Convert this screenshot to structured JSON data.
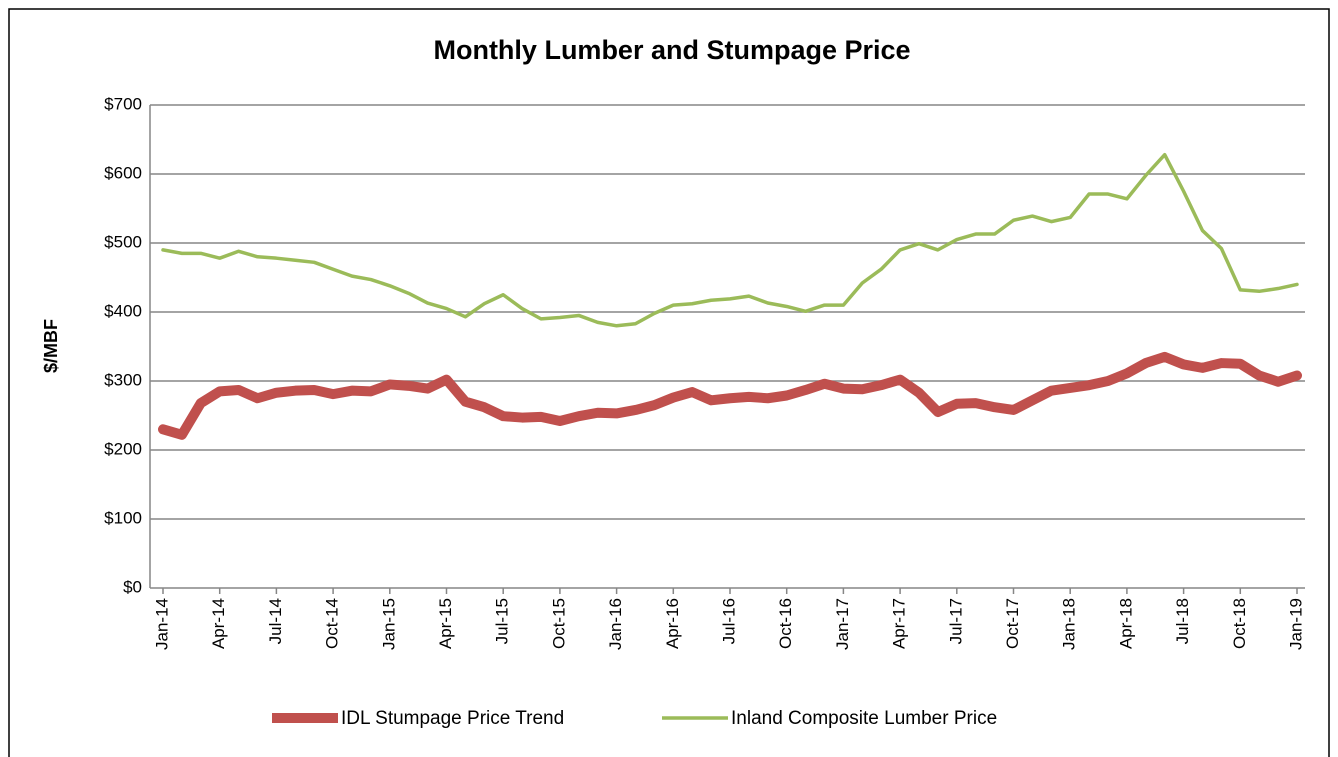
{
  "chart_data": {
    "type": "line",
    "title": "Monthly Lumber and Stumpage Price",
    "y_label": "$/MBF",
    "categories": [
      "Jan-14",
      null,
      null,
      "Apr-14",
      null,
      null,
      "Jul-14",
      null,
      null,
      "Oct-14",
      null,
      null,
      "Jan-15",
      null,
      null,
      "Apr-15",
      null,
      null,
      "Jul-15",
      null,
      null,
      "Oct-15",
      null,
      null,
      "Jan-16",
      null,
      null,
      "Apr-16",
      null,
      null,
      "Jul-16",
      null,
      null,
      "Oct-16",
      null,
      null,
      "Jan-17",
      null,
      null,
      "Apr-17",
      null,
      null,
      "Jul-17",
      null,
      null,
      "Oct-17",
      null,
      null,
      "Jan-18",
      null,
      null,
      "Apr-18",
      null,
      null,
      "Jul-18",
      null,
      null,
      "Oct-18",
      null,
      null,
      "Jan-19"
    ],
    "series": [
      {
        "name": "IDL Stumpage Price Trend",
        "color": "#c0504d",
        "values": [
          230,
          222,
          268,
          285,
          287,
          275,
          283,
          286,
          287,
          281,
          286,
          285,
          295,
          293,
          289,
          302,
          270,
          262,
          249,
          247,
          248,
          242,
          249,
          254,
          253,
          258,
          265,
          276,
          284,
          272,
          275,
          277,
          275,
          279,
          287,
          296,
          289,
          288,
          294,
          302,
          283,
          255,
          267,
          268,
          262,
          258,
          272,
          286,
          290,
          294,
          300,
          311,
          326,
          335,
          324,
          319,
          326,
          325,
          308,
          299,
          308
        ]
      },
      {
        "name": "Inland Composite Lumber Price",
        "color": "#9bbb59",
        "values": [
          490,
          485,
          485,
          478,
          488,
          480,
          478,
          475,
          472,
          462,
          452,
          447,
          438,
          427,
          413,
          405,
          393,
          412,
          425,
          405,
          390,
          392,
          395,
          385,
          380,
          383,
          398,
          410,
          412,
          417,
          419,
          423,
          413,
          408,
          401,
          410,
          410,
          442,
          462,
          490,
          499,
          490,
          505,
          513,
          513,
          533,
          539,
          531,
          537,
          571,
          571,
          564,
          598,
          628,
          575,
          518,
          492,
          432,
          430,
          434,
          440
        ]
      }
    ],
    "ylim": [
      0,
      700
    ],
    "yticks": [
      {
        "value": 0,
        "label": "$0"
      },
      {
        "value": 100,
        "label": "$100"
      },
      {
        "value": 200,
        "label": "$200"
      },
      {
        "value": 300,
        "label": "$300"
      },
      {
        "value": 400,
        "label": "$400"
      },
      {
        "value": 500,
        "label": "$500"
      },
      {
        "value": 600,
        "label": "$600"
      },
      {
        "value": 700,
        "label": "$700"
      }
    ],
    "grid": true,
    "legend": "bottom"
  }
}
